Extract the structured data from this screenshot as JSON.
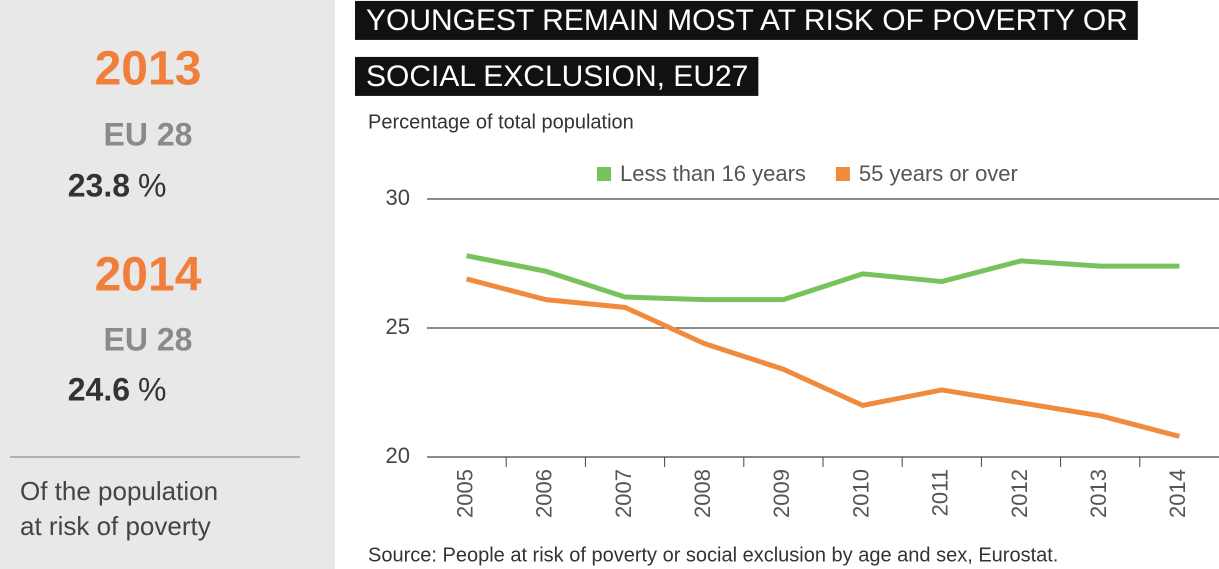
{
  "sidebar": {
    "blocks": [
      {
        "year": "2013",
        "area": "EU 28",
        "value": 23.8,
        "unit": "%"
      },
      {
        "year": "2014",
        "area": "EU 28",
        "value": 24.6,
        "unit": "%"
      }
    ],
    "caption": [
      "Of the population",
      "at risk of poverty"
    ]
  },
  "chart_data": {
    "type": "line",
    "title": [
      "YOUNGEST REMAIN MOST AT RISK OF POVERTY OR",
      "SOCIAL EXCLUSION, EU27"
    ],
    "subtitle": "Percentage of total population",
    "source": "Source: People at risk of poverty or social exclusion by age and sex, Eurostat.",
    "categories": [
      "2005",
      "2006",
      "2007",
      "2008",
      "2009",
      "2010",
      "2011",
      "2012",
      "2013",
      "2014"
    ],
    "series": [
      {
        "name": "Less than 16 years",
        "color": "#77c35b",
        "values": [
          27.8,
          27.2,
          26.2,
          26.1,
          26.1,
          27.1,
          26.8,
          27.6,
          27.4,
          27.4
        ]
      },
      {
        "name": "55 years or over",
        "color": "#f08a3c",
        "values": [
          26.9,
          26.1,
          25.8,
          24.4,
          23.4,
          22.0,
          22.6,
          22.1,
          21.6,
          20.8
        ]
      }
    ],
    "ylim": [
      20,
      30
    ],
    "yticks": [
      20,
      25,
      30
    ],
    "grid": true,
    "legend": "top"
  }
}
